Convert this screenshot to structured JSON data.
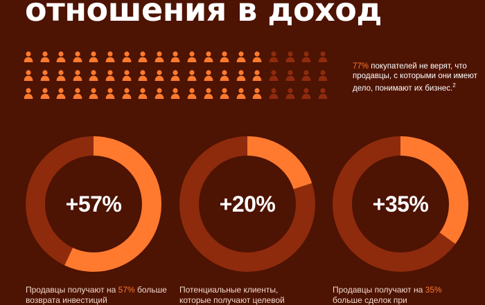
{
  "title": "отношения в доход",
  "people": {
    "rows": 3,
    "per_row": 19,
    "highlighted_per_row": 15,
    "highlight_color": "#ff7a2f",
    "dim_color": "#8e2b0d",
    "icon": "person-icon"
  },
  "stat": {
    "pct": "77%",
    "text": " покупателей не верят, что продавцы, с которыми они имеют дело, понимают их бизнес.",
    "footnote": "2"
  },
  "colors": {
    "background": "#4d1303",
    "accent": "#ff7a2f",
    "ring_track": "#8e2b0d"
  },
  "donuts": [
    {
      "value": "+57%",
      "fraction": 0.57,
      "caption_before": "Продавцы получают на ",
      "caption_pct": "57%",
      "caption_after": " больше возврата инвестиций"
    },
    {
      "value": "+20%",
      "fraction": 0.2,
      "caption_before": "Потенциальные клиенты, которые получают целевой",
      "caption_pct": "",
      "caption_after": ""
    },
    {
      "value": "+35%",
      "fraction": 0.35,
      "caption_before": "Продавцы получают на ",
      "caption_pct": "35%",
      "caption_after": " больше сделок при"
    }
  ]
}
